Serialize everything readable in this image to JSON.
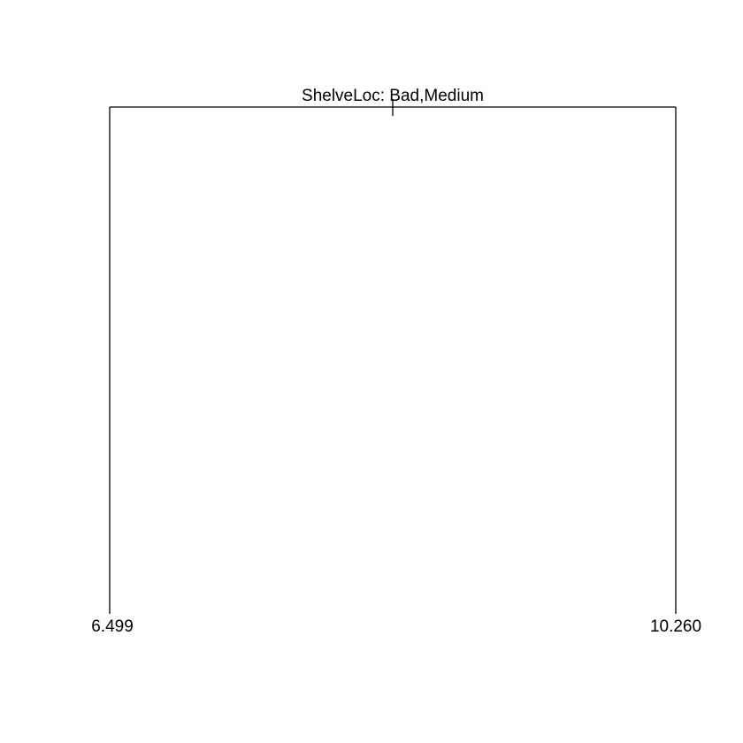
{
  "tree": {
    "root": {
      "split_label": "ShelveLoc: Bad,Medium"
    },
    "leaves": [
      {
        "value": "6.499"
      },
      {
        "value": "10.260"
      }
    ],
    "colors": {
      "line": "#000000",
      "text": "#000000",
      "background": "#ffffff"
    }
  }
}
